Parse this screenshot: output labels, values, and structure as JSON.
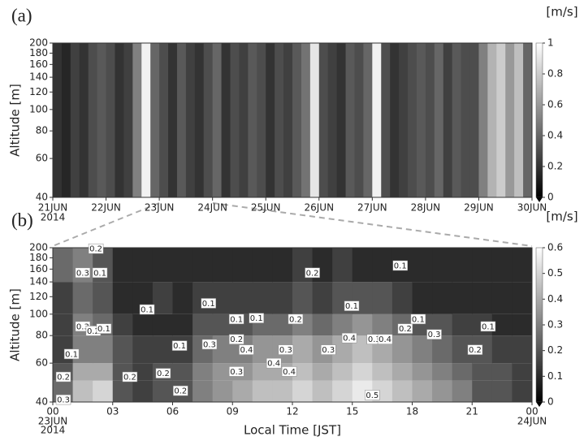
{
  "chart_data": [
    {
      "type": "heatmap",
      "panel_label": "(a)",
      "y_label": "Altitude [m]",
      "colorbar_label": "[m/s]",
      "x_labels": [
        "21JUN",
        "22JUN",
        "23JUN",
        "24JUN",
        "25JUN",
        "26JUN",
        "27JUN",
        "28JUN",
        "29JUN",
        "30JUN"
      ],
      "x_year": "2014",
      "ylim": [
        40,
        200
      ],
      "yticks": [
        40,
        60,
        80,
        100,
        120,
        140,
        160,
        180,
        200
      ],
      "log_y": true,
      "colorbar_lim": [
        0,
        1
      ],
      "colorbar_ticks": [
        0,
        0.2,
        0.4,
        0.6,
        0.8,
        1
      ],
      "values": [
        0.2,
        0.15,
        0.25,
        0.2,
        0.3,
        0.35,
        0.3,
        0.2,
        0.25,
        0.5,
        0.95,
        0.4,
        0.3,
        0.2,
        0.35,
        0.25,
        0.2,
        0.3,
        0.4,
        0.2,
        0.3,
        0.25,
        0.35,
        0.3,
        0.2,
        0.3,
        0.25,
        0.35,
        0.45,
        0.9,
        0.3,
        0.25,
        0.2,
        0.35,
        0.3,
        0.4,
        0.95,
        0.3,
        0.2,
        0.25,
        0.3,
        0.35,
        0.3,
        0.4,
        0.25,
        0.35,
        0.3,
        0.3,
        0.5,
        0.7,
        0.8,
        0.6,
        0.75,
        0.4
      ]
    },
    {
      "type": "heatmap",
      "panel_label": "(b)",
      "y_label": "Altitude [m]",
      "x_label": "Local Time [JST]",
      "colorbar_label": "[m/s]",
      "start_date": "23JUN",
      "start_year": "2014",
      "end_date": "24JUN",
      "xlim": [
        0,
        24
      ],
      "xticks": [
        {
          "value": 0,
          "label": "00"
        },
        {
          "value": 3,
          "label": "03"
        },
        {
          "value": 6,
          "label": "06"
        },
        {
          "value": 9,
          "label": "09"
        },
        12,
        15,
        18,
        21,
        {
          "value": 24,
          "label": "00"
        }
      ],
      "ylim": [
        40,
        200
      ],
      "yticks": [
        40,
        60,
        80,
        100,
        120,
        140,
        160,
        180,
        200
      ],
      "log_y": true,
      "colorbar_lim": [
        0,
        0.6
      ],
      "colorbar_ticks": [
        0,
        0.1,
        0.2,
        0.3,
        0.4,
        0.5,
        0.6
      ],
      "altitude_edges": [
        40,
        50,
        60,
        80,
        100,
        140,
        200
      ],
      "values": [
        [
          0.25,
          0.45,
          0.5,
          0.2,
          0.15,
          0.2,
          0.2,
          0.3,
          0.35,
          0.4,
          0.45,
          0.45,
          0.5,
          0.45,
          0.5,
          0.55,
          0.5,
          0.45,
          0.4,
          0.35,
          0.3,
          0.2,
          0.2,
          0.15
        ],
        [
          0.2,
          0.4,
          0.4,
          0.2,
          0.15,
          0.2,
          0.2,
          0.3,
          0.35,
          0.35,
          0.4,
          0.4,
          0.45,
          0.4,
          0.45,
          0.5,
          0.45,
          0.4,
          0.35,
          0.3,
          0.25,
          0.2,
          0.2,
          0.15
        ],
        [
          0.15,
          0.3,
          0.3,
          0.2,
          0.15,
          0.15,
          0.15,
          0.25,
          0.3,
          0.3,
          0.35,
          0.35,
          0.4,
          0.35,
          0.4,
          0.45,
          0.4,
          0.35,
          0.3,
          0.25,
          0.2,
          0.2,
          0.15,
          0.15
        ],
        [
          0.15,
          0.3,
          0.25,
          0.15,
          0.1,
          0.1,
          0.1,
          0.2,
          0.2,
          0.2,
          0.25,
          0.25,
          0.3,
          0.25,
          0.3,
          0.35,
          0.3,
          0.25,
          0.2,
          0.2,
          0.15,
          0.15,
          0.1,
          0.1
        ],
        [
          0.15,
          0.25,
          0.2,
          0.1,
          0.1,
          0.15,
          0.1,
          0.15,
          0.15,
          0.15,
          0.15,
          0.15,
          0.2,
          0.15,
          0.2,
          0.2,
          0.2,
          0.15,
          0.1,
          0.1,
          0.1,
          0.1,
          0.1,
          0.1
        ],
        [
          0.25,
          0.3,
          0.2,
          0.1,
          0.1,
          0.1,
          0.1,
          0.1,
          0.1,
          0.1,
          0.1,
          0.1,
          0.15,
          0.1,
          0.15,
          0.1,
          0.1,
          0.1,
          0.1,
          0.1,
          0.1,
          0.1,
          0.1,
          0.1
        ]
      ],
      "contour_labels": [
        {
          "value": 0.2,
          "hour": 2.16,
          "altitude": 198
        },
        {
          "value": 0.3,
          "hour": 1.5,
          "altitude": 154
        },
        {
          "value": 0.1,
          "hour": 2.36,
          "altitude": 154
        },
        {
          "value": 0.1,
          "hour": 4.72,
          "altitude": 105
        },
        {
          "value": 0.1,
          "hour": 0.94,
          "altitude": 66
        },
        {
          "value": 0.3,
          "hour": 1.5,
          "altitude": 88
        },
        {
          "value": 0.2,
          "hour": 2.03,
          "altitude": 84
        },
        {
          "value": 0.1,
          "hour": 2.56,
          "altitude": 86
        },
        {
          "value": 0.2,
          "hour": 0.53,
          "altitude": 52
        },
        {
          "value": 0.3,
          "hour": 0.53,
          "altitude": 41
        },
        {
          "value": 0.2,
          "hour": 3.86,
          "altitude": 52
        },
        {
          "value": 0.2,
          "hour": 5.53,
          "altitude": 54
        },
        {
          "value": 0.2,
          "hour": 6.4,
          "altitude": 45
        },
        {
          "value": 0.1,
          "hour": 6.35,
          "altitude": 72
        },
        {
          "value": 0.1,
          "hour": 7.8,
          "altitude": 112
        },
        {
          "value": 0.3,
          "hour": 7.85,
          "altitude": 73
        },
        {
          "value": 0.1,
          "hour": 9.2,
          "altitude": 95
        },
        {
          "value": 0.1,
          "hour": 10.2,
          "altitude": 96
        },
        {
          "value": 0.2,
          "hour": 9.2,
          "altitude": 77
        },
        {
          "value": 0.4,
          "hour": 9.7,
          "altitude": 69
        },
        {
          "value": 0.3,
          "hour": 9.2,
          "altitude": 55
        },
        {
          "value": 0.4,
          "hour": 11.07,
          "altitude": 60
        },
        {
          "value": 0.3,
          "hour": 11.67,
          "altitude": 69
        },
        {
          "value": 0.4,
          "hour": 11.84,
          "altitude": 55
        },
        {
          "value": 0.2,
          "hour": 12.16,
          "altitude": 95
        },
        {
          "value": 0.2,
          "hour": 13,
          "altitude": 154
        },
        {
          "value": 0.1,
          "hour": 14.97,
          "altitude": 109
        },
        {
          "value": 0.3,
          "hour": 13.8,
          "altitude": 69
        },
        {
          "value": 0.4,
          "hour": 14.85,
          "altitude": 78
        },
        {
          "value": 0.3,
          "hour": 16.1,
          "altitude": 77
        },
        {
          "value": 0.4,
          "hour": 16.64,
          "altitude": 77
        },
        {
          "value": 0.5,
          "hour": 16,
          "altitude": 43
        },
        {
          "value": 0.1,
          "hour": 17.4,
          "altitude": 166
        },
        {
          "value": 0.2,
          "hour": 17.65,
          "altitude": 86
        },
        {
          "value": 0.1,
          "hour": 18.3,
          "altitude": 95
        },
        {
          "value": 0.3,
          "hour": 19.1,
          "altitude": 81
        },
        {
          "value": 0.2,
          "hour": 21.15,
          "altitude": 69
        },
        {
          "value": 0.1,
          "hour": 21.8,
          "altitude": 88
        }
      ]
    }
  ]
}
